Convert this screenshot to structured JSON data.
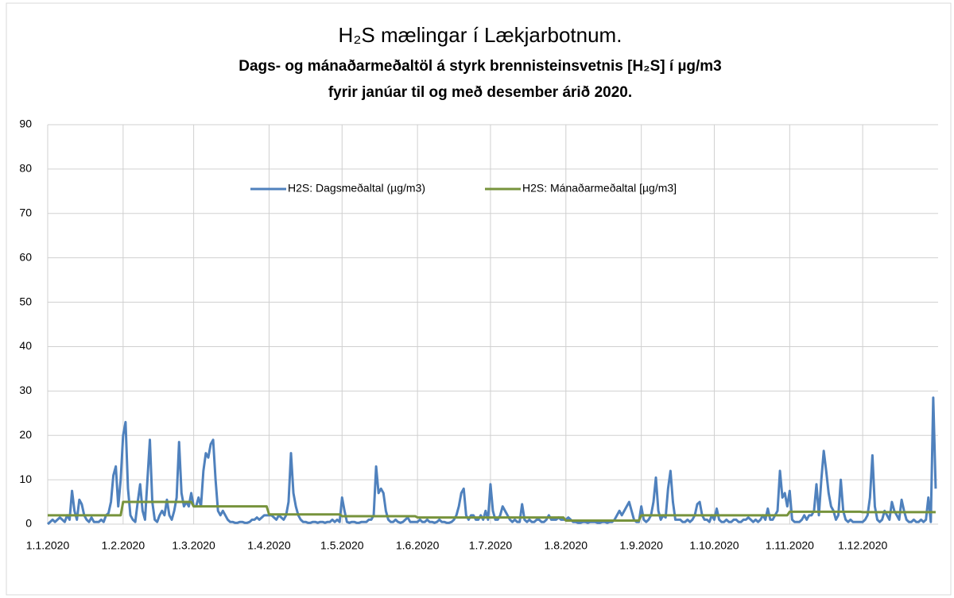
{
  "chart_data": {
    "type": "line",
    "title": "H₂S mælingar í Lækjarbotnum.",
    "subtitle": [
      "Dags- og mánaðarmeðaltöl á styrk brennisteinsvetnis [H₂S] í µg/m3",
      "fyrir janúar til og með desember árið 2020."
    ],
    "x": [
      "1.1.2020",
      "2.1.2020",
      "3.1.2020",
      "4.1.2020",
      "5.1.2020",
      "6.1.2020",
      "7.1.2020",
      "8.1.2020",
      "9.1.2020",
      "10.1.2020",
      "11.1.2020",
      "12.1.2020",
      "13.1.2020",
      "14.1.2020",
      "15.1.2020",
      "16.1.2020",
      "17.1.2020",
      "18.1.2020",
      "19.1.2020",
      "20.1.2020",
      "21.1.2020",
      "22.1.2020",
      "23.1.2020",
      "24.1.2020",
      "25.1.2020",
      "26.1.2020",
      "27.1.2020",
      "28.1.2020",
      "29.1.2020",
      "30.1.2020",
      "31.1.2020",
      "1.2.2020",
      "2.2.2020",
      "3.2.2020",
      "4.2.2020",
      "5.2.2020",
      "6.2.2020",
      "7.2.2020",
      "8.2.2020",
      "9.2.2020",
      "10.2.2020",
      "11.2.2020",
      "12.2.2020",
      "13.2.2020",
      "14.2.2020",
      "15.2.2020",
      "16.2.2020",
      "17.2.2020",
      "18.2.2020",
      "19.2.2020",
      "20.2.2020",
      "21.2.2020",
      "22.2.2020",
      "23.2.2020",
      "24.2.2020",
      "25.2.2020",
      "26.2.2020",
      "27.2.2020",
      "28.2.2020",
      "29.2.2020",
      "1.3.2020",
      "2.3.2020",
      "3.3.2020",
      "4.3.2020",
      "5.3.2020",
      "6.3.2020",
      "7.3.2020",
      "8.3.2020",
      "9.3.2020",
      "10.3.2020",
      "11.3.2020",
      "12.3.2020",
      "13.3.2020",
      "14.3.2020",
      "15.3.2020",
      "16.3.2020",
      "17.3.2020",
      "18.3.2020",
      "19.3.2020",
      "20.3.2020",
      "21.3.2020",
      "22.3.2020",
      "23.3.2020",
      "24.3.2020",
      "25.3.2020",
      "26.3.2020",
      "27.3.2020",
      "28.3.2020",
      "29.3.2020",
      "30.3.2020",
      "31.3.2020",
      "1.4.2020",
      "2.4.2020",
      "3.4.2020",
      "4.4.2020",
      "5.4.2020",
      "6.4.2020",
      "7.4.2020",
      "8.4.2020",
      "9.4.2020",
      "10.4.2020",
      "11.4.2020",
      "12.4.2020",
      "13.4.2020",
      "14.4.2020",
      "15.4.2020",
      "16.4.2020",
      "17.4.2020",
      "18.4.2020",
      "19.4.2020",
      "20.4.2020",
      "21.4.2020",
      "22.4.2020",
      "23.4.2020",
      "24.4.2020",
      "25.4.2020",
      "26.4.2020",
      "27.4.2020",
      "28.4.2020",
      "29.4.2020",
      "30.4.2020",
      "1.5.2020",
      "2.5.2020",
      "3.5.2020",
      "4.5.2020",
      "5.5.2020",
      "6.5.2020",
      "7.5.2020",
      "8.5.2020",
      "9.5.2020",
      "10.5.2020",
      "11.5.2020",
      "12.5.2020",
      "13.5.2020",
      "14.5.2020",
      "15.5.2020",
      "16.5.2020",
      "17.5.2020",
      "18.5.2020",
      "19.5.2020",
      "20.5.2020",
      "21.5.2020",
      "22.5.2020",
      "23.5.2020",
      "24.5.2020",
      "25.5.2020",
      "26.5.2020",
      "27.5.2020",
      "28.5.2020",
      "29.5.2020",
      "30.5.2020",
      "31.5.2020",
      "1.6.2020",
      "2.6.2020",
      "3.6.2020",
      "4.6.2020",
      "5.6.2020",
      "6.6.2020",
      "7.6.2020",
      "8.6.2020",
      "9.6.2020",
      "10.6.2020",
      "11.6.2020",
      "12.6.2020",
      "13.6.2020",
      "14.6.2020",
      "15.6.2020",
      "16.6.2020",
      "17.6.2020",
      "18.6.2020",
      "19.6.2020",
      "20.6.2020",
      "21.6.2020",
      "22.6.2020",
      "23.6.2020",
      "24.6.2020",
      "25.6.2020",
      "26.6.2020",
      "27.6.2020",
      "28.6.2020",
      "29.6.2020",
      "30.6.2020",
      "1.7.2020",
      "2.7.2020",
      "3.7.2020",
      "4.7.2020",
      "5.7.2020",
      "6.7.2020",
      "7.7.2020",
      "8.7.2020",
      "9.7.2020",
      "10.7.2020",
      "11.7.2020",
      "12.7.2020",
      "13.7.2020",
      "14.7.2020",
      "15.7.2020",
      "16.7.2020",
      "17.7.2020",
      "18.7.2020",
      "19.7.2020",
      "20.7.2020",
      "21.7.2020",
      "22.7.2020",
      "23.7.2020",
      "24.7.2020",
      "25.7.2020",
      "26.7.2020",
      "27.7.2020",
      "28.7.2020",
      "29.7.2020",
      "30.7.2020",
      "31.7.2020",
      "1.8.2020",
      "2.8.2020",
      "3.8.2020",
      "4.8.2020",
      "5.8.2020",
      "6.8.2020",
      "7.8.2020",
      "8.8.2020",
      "9.8.2020",
      "10.8.2020",
      "11.8.2020",
      "12.8.2020",
      "13.8.2020",
      "14.8.2020",
      "15.8.2020",
      "16.8.2020",
      "17.8.2020",
      "18.8.2020",
      "19.8.2020",
      "20.8.2020",
      "21.8.2020",
      "22.8.2020",
      "23.8.2020",
      "24.8.2020",
      "25.8.2020",
      "26.8.2020",
      "27.8.2020",
      "28.8.2020",
      "29.8.2020",
      "30.8.2020",
      "31.8.2020",
      "1.9.2020",
      "2.9.2020",
      "3.9.2020",
      "4.9.2020",
      "5.9.2020",
      "6.9.2020",
      "7.9.2020",
      "8.9.2020",
      "9.9.2020",
      "10.9.2020",
      "11.9.2020",
      "12.9.2020",
      "13.9.2020",
      "14.9.2020",
      "15.9.2020",
      "16.9.2020",
      "17.9.2020",
      "18.9.2020",
      "19.9.2020",
      "20.9.2020",
      "21.9.2020",
      "22.9.2020",
      "23.9.2020",
      "24.9.2020",
      "25.9.2020",
      "26.9.2020",
      "27.9.2020",
      "28.9.2020",
      "29.9.2020",
      "30.9.2020",
      "1.10.2020",
      "2.10.2020",
      "3.10.2020",
      "4.10.2020",
      "5.10.2020",
      "6.10.2020",
      "7.10.2020",
      "8.10.2020",
      "9.10.2020",
      "10.10.2020",
      "11.10.2020",
      "12.10.2020",
      "13.10.2020",
      "14.10.2020",
      "15.10.2020",
      "16.10.2020",
      "17.10.2020",
      "18.10.2020",
      "19.10.2020",
      "20.10.2020",
      "21.10.2020",
      "22.10.2020",
      "23.10.2020",
      "24.10.2020",
      "25.10.2020",
      "26.10.2020",
      "27.10.2020",
      "28.10.2020",
      "29.10.2020",
      "30.10.2020",
      "31.10.2020",
      "1.11.2020",
      "2.11.2020",
      "3.11.2020",
      "4.11.2020",
      "5.11.2020",
      "6.11.2020",
      "7.11.2020",
      "8.11.2020",
      "9.11.2020",
      "10.11.2020",
      "11.11.2020",
      "12.11.2020",
      "13.11.2020",
      "14.11.2020",
      "15.11.2020",
      "16.11.2020",
      "17.11.2020",
      "18.11.2020",
      "19.11.2020",
      "20.11.2020",
      "21.11.2020",
      "22.11.2020",
      "23.11.2020",
      "24.11.2020",
      "25.11.2020",
      "26.11.2020",
      "27.11.2020",
      "28.11.2020",
      "29.11.2020",
      "30.11.2020",
      "1.12.2020",
      "2.12.2020",
      "3.12.2020",
      "4.12.2020",
      "5.12.2020",
      "6.12.2020",
      "7.12.2020",
      "8.12.2020",
      "9.12.2020",
      "10.12.2020",
      "11.12.2020",
      "12.12.2020",
      "13.12.2020",
      "14.12.2020",
      "15.12.2020",
      "16.12.2020",
      "17.12.2020",
      "18.12.2020",
      "19.12.2020",
      "20.12.2020",
      "21.12.2020",
      "22.12.2020",
      "23.12.2020",
      "24.12.2020",
      "25.12.2020",
      "26.12.2020",
      "27.12.2020",
      "28.12.2020",
      "29.12.2020",
      "30.12.2020",
      "31.12.2020"
    ],
    "series": [
      {
        "name": "H2S: Dagsmeðaltal (µg/m3)",
        "color": "#4f81bd",
        "values": [
          0,
          0.5,
          1,
          0.5,
          1,
          1.5,
          1,
          0.5,
          2,
          1,
          7.5,
          3,
          1,
          5.5,
          4.5,
          2,
          1,
          0.5,
          1.5,
          0.5,
          0.5,
          0.5,
          1,
          0.5,
          2,
          2.5,
          5,
          11,
          13,
          4,
          10,
          20,
          23,
          8,
          2,
          1,
          0.5,
          5,
          9,
          3,
          1,
          10,
          19,
          5,
          1,
          0.5,
          2,
          3,
          2,
          5.5,
          2,
          1,
          3,
          6,
          18.5,
          7,
          4,
          5,
          4,
          7,
          4,
          4,
          6,
          4,
          12,
          16,
          15,
          18,
          19,
          10,
          3,
          2,
          3,
          2,
          1,
          0.5,
          0.5,
          0.3,
          0.3,
          0.5,
          0.5,
          0.3,
          0.3,
          0.5,
          1,
          1,
          1.5,
          1,
          1.5,
          2,
          2,
          2,
          2,
          1.5,
          1,
          2,
          1.5,
          1,
          2,
          5,
          16,
          7,
          4,
          2,
          1,
          0.5,
          0.5,
          0.3,
          0.3,
          0.5,
          0.5,
          0.3,
          0.5,
          0.5,
          0.3,
          0.5,
          0.5,
          1,
          0.5,
          1,
          0.5,
          6,
          3,
          0.5,
          0.3,
          0.5,
          0.5,
          0.3,
          0.3,
          0.5,
          0.5,
          0.5,
          1,
          1,
          2,
          13,
          7,
          8,
          7,
          3,
          1,
          0.5,
          0.5,
          1,
          0.5,
          0.3,
          0.5,
          1,
          1.5,
          0.5,
          0.5,
          0.5,
          0.5,
          1,
          0.5,
          0.5,
          1,
          0.5,
          0.5,
          0.3,
          0.5,
          1,
          0.5,
          0.5,
          0.3,
          0.3,
          0.5,
          1,
          2,
          4,
          7,
          8,
          2,
          1,
          2,
          2,
          1,
          1,
          2,
          1,
          3,
          1,
          9,
          3,
          1,
          1,
          2,
          4,
          3,
          2,
          1,
          0.5,
          1,
          0.5,
          0.5,
          4.5,
          1,
          0.5,
          1,
          0.5,
          0.5,
          1,
          1,
          0.5,
          0.5,
          1,
          2,
          1,
          1,
          1,
          1.5,
          1,
          1,
          1,
          1.5,
          1,
          0.5,
          0.5,
          0.3,
          0.3,
          0.5,
          0.5,
          0.3,
          0.5,
          0.5,
          0.5,
          0.3,
          0.3,
          0.5,
          0.5,
          0.3,
          0.5,
          0.5,
          1,
          2,
          3,
          2,
          3,
          4,
          5,
          3,
          1,
          0.5,
          0.5,
          4,
          1,
          0.5,
          1,
          2,
          5,
          10.5,
          3,
          1,
          2,
          1.5,
          8,
          12,
          5,
          1,
          1,
          1,
          0.5,
          0.5,
          1,
          0.5,
          1,
          2,
          4.5,
          5,
          2,
          1,
          1,
          0.5,
          2,
          1,
          3.5,
          1,
          0.5,
          0.5,
          1,
          0.5,
          0.5,
          1,
          1,
          0.5,
          0.5,
          1,
          1,
          1.5,
          1,
          0.5,
          1,
          0.5,
          1,
          2,
          1,
          3.5,
          1,
          1,
          2,
          3,
          12,
          6,
          7,
          4,
          7.5,
          1,
          0.5,
          0.5,
          0.5,
          1,
          2,
          1,
          2,
          2,
          3,
          9,
          2,
          10,
          16.5,
          12,
          7,
          4,
          3,
          1,
          2,
          10,
          3,
          1,
          0.5,
          1,
          0.5,
          0.5,
          0.5,
          0.5,
          0.5,
          1,
          2,
          6,
          15.5,
          4,
          1,
          0.5,
          1,
          3,
          2,
          1,
          5,
          3,
          2,
          1,
          5.5,
          3,
          1,
          0.5,
          0.5,
          1,
          0.5,
          0.5,
          1,
          0.5,
          1,
          6,
          0.5,
          28.5,
          8
        ]
      },
      {
        "name": "H2S: Mánaðarmeðaltal [µg/m3]",
        "color": "#77933c",
        "values": [
          2,
          2,
          2,
          2,
          2,
          2,
          2,
          2,
          2,
          2,
          2,
          2,
          2,
          2,
          2,
          2,
          2,
          2,
          2,
          2,
          2,
          2,
          2,
          2,
          2,
          2,
          2,
          2,
          2,
          2,
          2,
          5,
          5,
          5,
          5,
          5,
          5,
          5,
          5,
          5,
          5,
          5,
          5,
          5,
          5,
          5,
          5,
          5,
          5,
          5,
          5,
          5,
          5,
          5,
          5,
          5,
          5,
          5,
          5,
          5,
          4,
          4,
          4,
          4,
          4,
          4,
          4,
          4,
          4,
          4,
          4,
          4,
          4,
          4,
          4,
          4,
          4,
          4,
          4,
          4,
          4,
          4,
          4,
          4,
          4,
          4,
          4,
          4,
          4,
          4,
          4,
          2.2,
          2.2,
          2.2,
          2.2,
          2.2,
          2.2,
          2.2,
          2.2,
          2.2,
          2.2,
          2.2,
          2.2,
          2.2,
          2.2,
          2.2,
          2.2,
          2.2,
          2.2,
          2.2,
          2.2,
          2.2,
          2.2,
          2.2,
          2.2,
          2.2,
          2.2,
          2.2,
          2.2,
          2.2,
          2.2,
          1.8,
          1.8,
          1.8,
          1.8,
          1.8,
          1.8,
          1.8,
          1.8,
          1.8,
          1.8,
          1.8,
          1.8,
          1.8,
          1.8,
          1.8,
          1.8,
          1.8,
          1.8,
          1.8,
          1.8,
          1.8,
          1.8,
          1.8,
          1.8,
          1.8,
          1.8,
          1.8,
          1.8,
          1.8,
          1.8,
          1.8,
          1.5,
          1.5,
          1.5,
          1.5,
          1.5,
          1.5,
          1.5,
          1.5,
          1.5,
          1.5,
          1.5,
          1.5,
          1.5,
          1.5,
          1.5,
          1.5,
          1.5,
          1.5,
          1.5,
          1.5,
          1.5,
          1.5,
          1.5,
          1.5,
          1.5,
          1.5,
          1.5,
          1.5,
          1.5,
          1.5,
          1.5,
          1.5,
          1.5,
          1.5,
          1.5,
          1.5,
          1.5,
          1.5,
          1.5,
          1.5,
          1.5,
          1.5,
          1.5,
          1.5,
          1.5,
          1.5,
          1.5,
          1.5,
          1.5,
          1.5,
          1.5,
          1.5,
          1.5,
          1.5,
          1.5,
          1.5,
          1.5,
          1.5,
          1.5,
          1.5,
          1.5,
          0.8,
          0.8,
          0.8,
          0.8,
          0.8,
          0.8,
          0.8,
          0.8,
          0.8,
          0.8,
          0.8,
          0.8,
          0.8,
          0.8,
          0.8,
          0.8,
          0.8,
          0.8,
          0.8,
          0.8,
          0.8,
          0.8,
          0.8,
          0.8,
          0.8,
          0.8,
          0.8,
          0.8,
          0.8,
          0.8,
          0.8,
          2,
          2,
          2,
          2,
          2,
          2,
          2,
          2,
          2,
          2,
          2,
          2,
          2,
          2,
          2,
          2,
          2,
          2,
          2,
          2,
          2,
          2,
          2,
          2,
          2,
          2,
          2,
          2,
          2,
          2,
          2,
          2,
          2,
          2,
          2,
          2,
          2,
          2,
          2,
          2,
          2,
          2,
          2,
          2,
          2,
          2,
          2,
          2,
          2,
          2,
          2,
          2,
          2,
          2,
          2,
          2,
          2,
          2,
          2,
          2,
          2,
          2.8,
          2.8,
          2.8,
          2.8,
          2.8,
          2.8,
          2.8,
          2.8,
          2.8,
          2.8,
          2.8,
          2.8,
          2.8,
          2.8,
          2.8,
          2.8,
          2.8,
          2.8,
          2.8,
          2.8,
          2.8,
          2.8,
          2.8,
          2.8,
          2.8,
          2.8,
          2.8,
          2.8,
          2.8,
          2.8,
          2.7,
          2.7,
          2.7,
          2.7,
          2.7,
          2.7,
          2.7,
          2.7,
          2.7,
          2.7,
          2.7,
          2.7,
          2.7,
          2.7,
          2.7,
          2.7,
          2.7,
          2.7,
          2.7,
          2.7,
          2.7,
          2.7,
          2.7,
          2.7,
          2.7,
          2.7,
          2.7,
          2.7,
          2.7,
          2.7,
          2.7
        ]
      }
    ],
    "xticks": [
      "1.1.2020",
      "1.2.2020",
      "1.3.2020",
      "1.4.2020",
      "1.5.2020",
      "1.6.2020",
      "1.7.2020",
      "1.8.2020",
      "1.9.2020",
      "1.10.2020",
      "1.11.2020",
      "1.12.2020"
    ],
    "ylim": [
      0,
      90
    ],
    "yticks": [
      0,
      10,
      20,
      30,
      40,
      50,
      60,
      70,
      80,
      90
    ],
    "grid": true,
    "legend": "top"
  }
}
